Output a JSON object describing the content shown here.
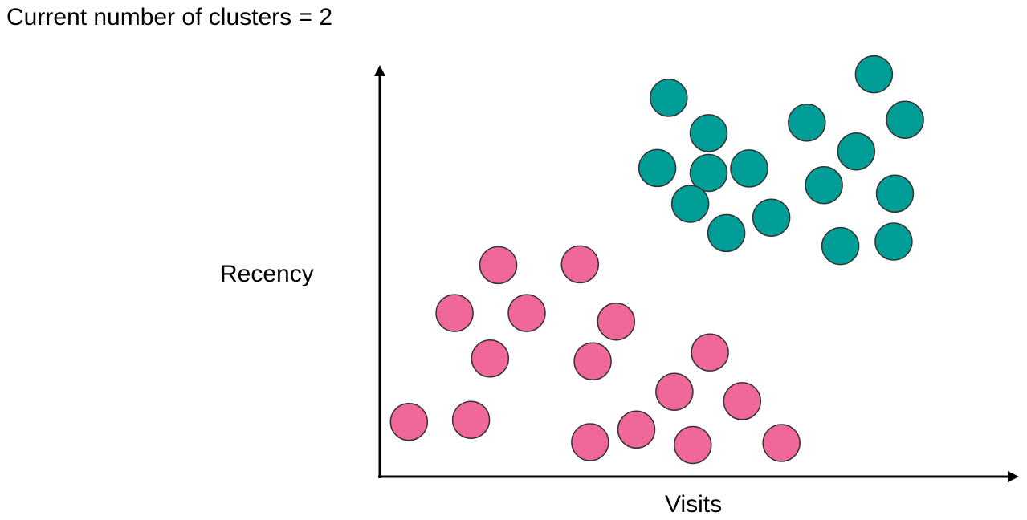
{
  "title": "Current number of clusters = 2",
  "y_axis_label": "Recency",
  "x_axis_label": "Visits",
  "colors": {
    "cluster_1": "#009e96",
    "cluster_2": "#f0679a",
    "axis": "#000000",
    "point_stroke": "#333333"
  },
  "chart_data": {
    "type": "scatter",
    "xlabel": "Visits",
    "ylabel": "Recency",
    "grid": false,
    "series": [
      {
        "color": "#009e96",
        "points": [
          [
            45.6,
            93.3
          ],
          [
            51.9,
            84.6
          ],
          [
            43.8,
            76.0
          ],
          [
            51.9,
            74.8
          ],
          [
            58.3,
            75.9
          ],
          [
            49.0,
            67.2
          ],
          [
            54.7,
            60.0
          ],
          [
            61.8,
            63.8
          ],
          [
            67.4,
            87.2
          ],
          [
            78.0,
            99.1
          ],
          [
            75.2,
            80.1
          ],
          [
            82.9,
            87.9
          ],
          [
            70.1,
            71.8
          ],
          [
            81.3,
            69.7
          ],
          [
            72.7,
            56.8
          ],
          [
            81.1,
            57.9
          ]
        ]
      },
      {
        "color": "#f0679a",
        "points": [
          [
            18.7,
            52.1
          ],
          [
            31.6,
            52.3
          ],
          [
            11.8,
            40.3
          ],
          [
            23.2,
            40.3
          ],
          [
            37.3,
            38.2
          ],
          [
            17.4,
            29.1
          ],
          [
            33.6,
            28.4
          ],
          [
            52.1,
            30.6
          ],
          [
            46.5,
            20.9
          ],
          [
            57.2,
            18.6
          ],
          [
            4.6,
            13.5
          ],
          [
            14.4,
            14.0
          ],
          [
            40.5,
            11.6
          ],
          [
            33.2,
            8.5
          ],
          [
            49.4,
            7.8
          ],
          [
            63.4,
            8.3
          ]
        ]
      }
    ]
  }
}
